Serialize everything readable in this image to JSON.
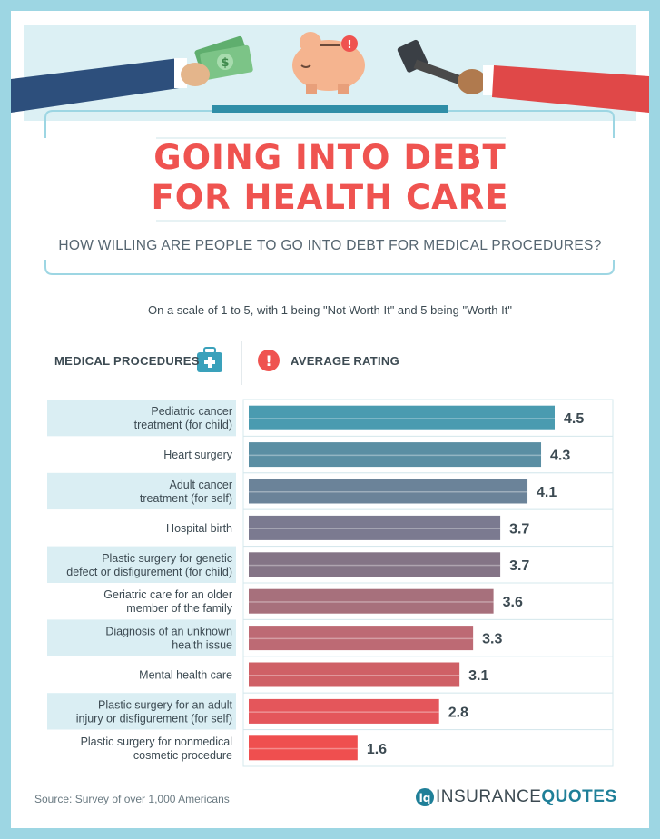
{
  "header": {
    "title_line1": "GOING INTO DEBT",
    "title_line2": "FOR HEALTH CARE",
    "subtitle": "HOW WILLING ARE PEOPLE TO GO INTO DEBT FOR MEDICAL PROCEDURES?",
    "scale_note": "On a scale of 1 to 5, with 1 being \"Not Worth It\" and 5 being \"Worth It\""
  },
  "columns": {
    "procedures": "MEDICAL PROCEDURES",
    "rating": "AVERAGE RATING"
  },
  "icons": [
    "dollar-bills-icon",
    "piggy-bank-icon",
    "hammer-icon",
    "first-aid-kit-icon",
    "alert-icon",
    "brand-logo-icon"
  ],
  "colors": {
    "title": "#ef5350",
    "bar_top": "#4a9bb0",
    "bar_bottom": "#ef4f4f",
    "row_alt": "#daeef3"
  },
  "chart_data": {
    "type": "bar",
    "orientation": "horizontal",
    "categories": [
      [
        "Pediatric cancer",
        "treatment (for child)"
      ],
      [
        "Heart surgery"
      ],
      [
        "Adult cancer",
        "treatment (for self)"
      ],
      [
        "Hospital birth"
      ],
      [
        "Plastic surgery for genetic",
        "defect or disfigurement (for child)"
      ],
      [
        "Geriatric care for an older",
        "member of the family"
      ],
      [
        "Diagnosis of an unknown",
        "health issue"
      ],
      [
        "Mental health care"
      ],
      [
        "Plastic surgery for an adult",
        "injury or disfigurement (for self)"
      ],
      [
        "Plastic surgery for nonmedical",
        "cosmetic procedure"
      ]
    ],
    "values": [
      4.5,
      4.3,
      4.1,
      3.7,
      3.7,
      3.6,
      3.3,
      3.1,
      2.8,
      1.6
    ],
    "value_labels": [
      "4.5",
      "4.3",
      "4.1",
      "3.7",
      "3.7",
      "3.6",
      "3.3",
      "3.1",
      "2.8",
      "1.6"
    ],
    "bar_colors": [
      "#4a9bb0",
      "#5a8ea3",
      "#6b8399",
      "#7b7a90",
      "#847486",
      "#a7707c",
      "#bd6a74",
      "#cf6066",
      "#e4565b",
      "#ef4f4f"
    ],
    "xlim": [
      0,
      5
    ],
    "grid": false,
    "legend": "none"
  },
  "footer": {
    "source": "Source: Survey of over 1,000 Americans",
    "brand_a": "INSURANCE",
    "brand_b": "QUOTES"
  }
}
